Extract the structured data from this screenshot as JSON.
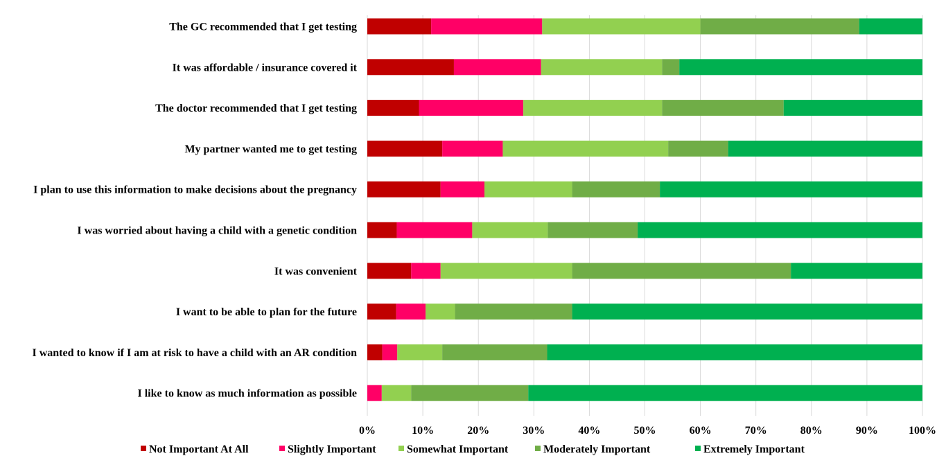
{
  "chart_data": {
    "type": "bar",
    "orientation": "horizontal",
    "stacked": true,
    "percent_scale": true,
    "categories": [
      "The GC recommended that I get testing",
      "It was affordable / insurance covered it",
      "The doctor recommended that I get testing",
      "My partner wanted me to get testing",
      "I plan to use this information to make decisions about the pregnancy",
      "I was worried about having a child with a genetic condition",
      "It was convenient",
      "I want to be able to plan for the future",
      "I wanted to know if I am at risk to have a child with an AR condition",
      "I like to know as much information as possible"
    ],
    "series": [
      {
        "name": "Not Important At All",
        "color": "#C00000",
        "values": [
          11.5,
          15.6,
          9.3,
          13.5,
          13.2,
          5.3,
          7.9,
          5.2,
          2.7,
          0.0
        ]
      },
      {
        "name": "Slightly Important",
        "color": "#FF0066",
        "values": [
          20.0,
          15.7,
          18.8,
          10.9,
          7.9,
          13.6,
          5.3,
          5.3,
          2.7,
          2.6
        ]
      },
      {
        "name": "Somewhat Important",
        "color": "#92D050",
        "values": [
          28.5,
          21.8,
          25.0,
          29.8,
          15.8,
          13.6,
          23.7,
          5.3,
          8.1,
          5.3
        ]
      },
      {
        "name": "Moderately Important",
        "color": "#70AD47",
        "values": [
          28.6,
          3.1,
          21.9,
          10.8,
          15.8,
          16.2,
          39.4,
          21.1,
          18.9,
          21.1
        ]
      },
      {
        "name": "Extremely Important",
        "color": "#00B050",
        "values": [
          11.4,
          43.8,
          25.0,
          35.0,
          47.3,
          51.3,
          23.7,
          63.1,
          67.6,
          71.0
        ]
      }
    ],
    "x_ticks": [
      "0%",
      "10%",
      "20%",
      "30%",
      "40%",
      "50%",
      "60%",
      "70%",
      "80%",
      "90%",
      "100%"
    ],
    "xlim": [
      0,
      100
    ],
    "title": "",
    "xlabel": "",
    "ylabel": "",
    "grid": "vertical",
    "legend": "bottom"
  }
}
